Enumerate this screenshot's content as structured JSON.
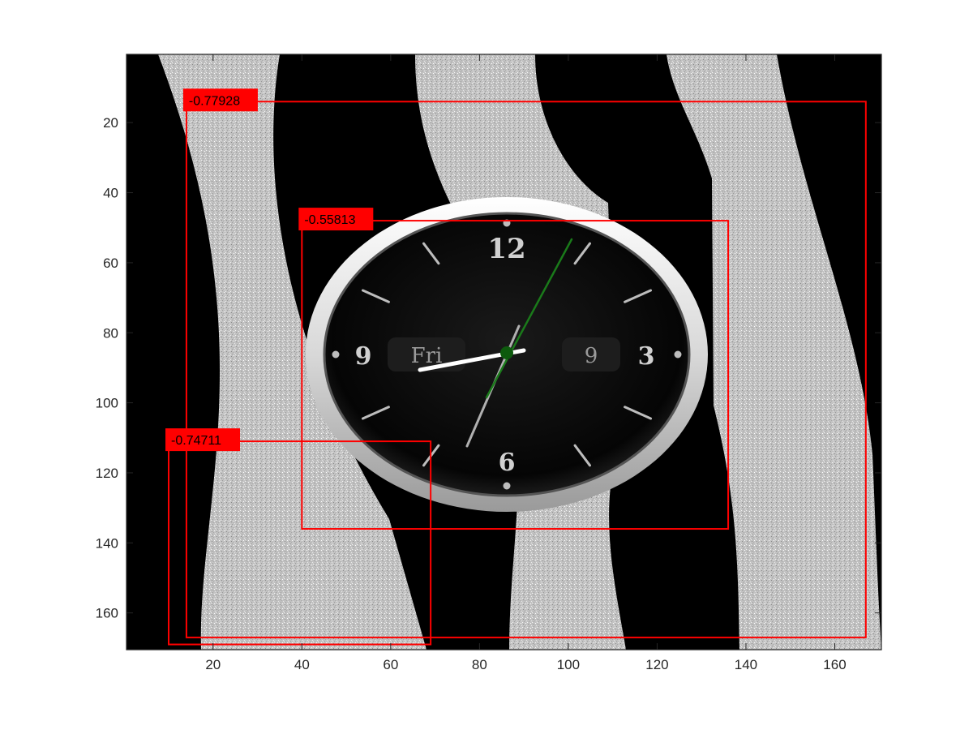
{
  "chart_data": {
    "type": "image",
    "xlim": [
      0.5,
      170.5
    ],
    "ylim": [
      0.5,
      170.5
    ],
    "y_reversed": true,
    "xticks": [
      20,
      40,
      60,
      80,
      100,
      120,
      140,
      160
    ],
    "yticks": [
      20,
      40,
      60,
      80,
      100,
      120,
      140,
      160
    ],
    "title": "",
    "xlabel": "",
    "ylabel": "",
    "detections": [
      {
        "label": "-0.77928",
        "x1": 14,
        "y1": 14,
        "x2": 167,
        "y2": 167
      },
      {
        "label": "-0.55813",
        "x1": 40,
        "y1": 48,
        "x2": 136,
        "y2": 136
      },
      {
        "label": "-0.74711",
        "x1": 10,
        "y1": 111,
        "x2": 69,
        "y2": 169
      }
    ],
    "box_color": "#ff0000",
    "label_bg": "#ff0000"
  },
  "clock": {
    "numbers": [
      "12",
      "3",
      "6",
      "9"
    ],
    "day": "Fri",
    "date": "9"
  },
  "colors": {
    "stripe": "#c4c4c4",
    "background": "#000000",
    "second_hand": "#1a7a1a"
  }
}
